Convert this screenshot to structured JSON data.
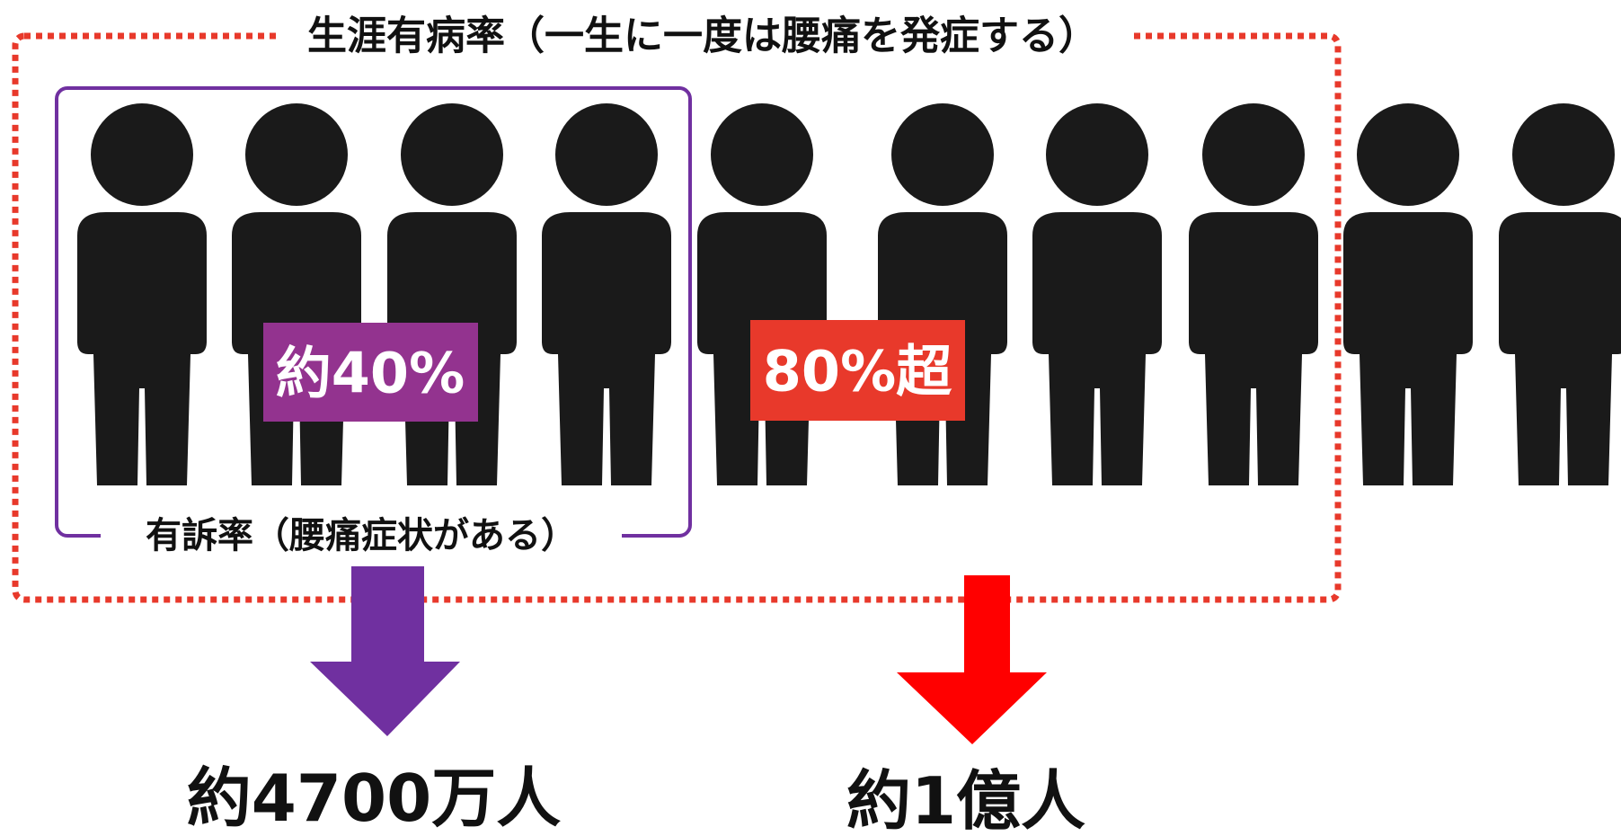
{
  "title": "生涯有病率（一生に一度は腰痛を発症する）",
  "inner_label": "有訴率（腰痛症状がある）",
  "badges": {
    "inner": "約40%",
    "outer": "80%超"
  },
  "results": {
    "inner": "約4700万人",
    "outer": "約1億人"
  }
}
